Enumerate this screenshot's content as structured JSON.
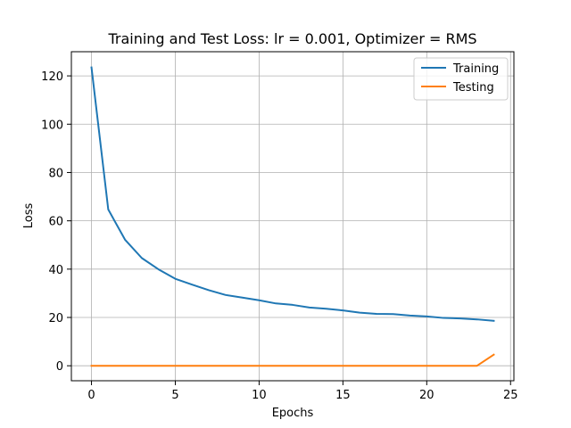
{
  "chart_data": {
    "type": "line",
    "title": "Training and Test Loss: lr = 0.001, Optimizer = RMS",
    "xlabel": "Epochs",
    "ylabel": "Loss",
    "x": [
      0,
      1,
      2,
      3,
      4,
      5,
      6,
      7,
      8,
      9,
      10,
      11,
      12,
      13,
      14,
      15,
      16,
      17,
      18,
      19,
      20,
      21,
      22,
      23,
      24
    ],
    "series": [
      {
        "name": "Training",
        "color": "#1f77b4",
        "values": [
          123.5,
          64.7,
          52.2,
          44.6,
          39.9,
          36.0,
          33.6,
          31.3,
          29.3,
          28.2,
          27.1,
          25.8,
          25.2,
          24.1,
          23.6,
          22.9,
          22.0,
          21.5,
          21.4,
          20.8,
          20.4,
          19.8,
          19.6,
          19.2,
          18.6
        ]
      },
      {
        "name": "Testing",
        "color": "#ff7f0e",
        "values": [
          0,
          0,
          0,
          0,
          0,
          0,
          0,
          0,
          0,
          0,
          0,
          0,
          0,
          0,
          0,
          0,
          0,
          0,
          0,
          0,
          0,
          0,
          0,
          0,
          4.6
        ]
      }
    ],
    "xlim": [
      -1.2,
      25.2
    ],
    "ylim": [
      -6.2,
      130
    ],
    "xticks": [
      0,
      5,
      10,
      15,
      20,
      25
    ],
    "yticks": [
      0,
      20,
      40,
      60,
      80,
      100,
      120
    ],
    "grid": true,
    "legend_position": "top-right"
  }
}
